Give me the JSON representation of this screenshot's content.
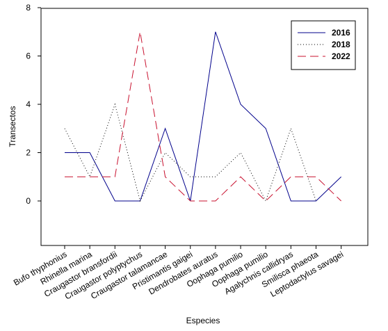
{
  "chart_data": {
    "type": "line",
    "xlabel": "Especies",
    "ylabel": "Transectos",
    "ylim": [
      -1.8,
      8
    ],
    "yticks": [
      0,
      2,
      4,
      6,
      8
    ],
    "grid": false,
    "legend_position": "top-right",
    "categories": [
      "Bufo thyphonius",
      "Rhinella marina",
      "Craugastor bransfordii",
      "Craugastor polyptychus",
      "Craugastor talamancae",
      "Pristimantis gaigei",
      "Dendrobates auratus",
      "Oophaga pumilio",
      "Oophaga pumilio",
      "Agalychnis callidryas",
      "Smilisca phaeota",
      "Leptodactylus savagei"
    ],
    "series": [
      {
        "name": "2016",
        "color": "#00008b",
        "dash": "solid",
        "values": [
          2,
          2,
          0,
          0,
          3,
          0,
          7,
          4,
          3,
          0,
          0,
          1
        ]
      },
      {
        "name": "2018",
        "color": "#000000",
        "dash": "dotted",
        "values": [
          3,
          1,
          4,
          0,
          2,
          1,
          1,
          2,
          0,
          3,
          0,
          null
        ]
      },
      {
        "name": "2022",
        "color": "#c8102e",
        "dash": "dashed",
        "values": [
          1,
          1,
          1,
          7,
          1,
          0,
          0,
          1,
          0,
          1,
          1,
          0
        ]
      }
    ]
  }
}
